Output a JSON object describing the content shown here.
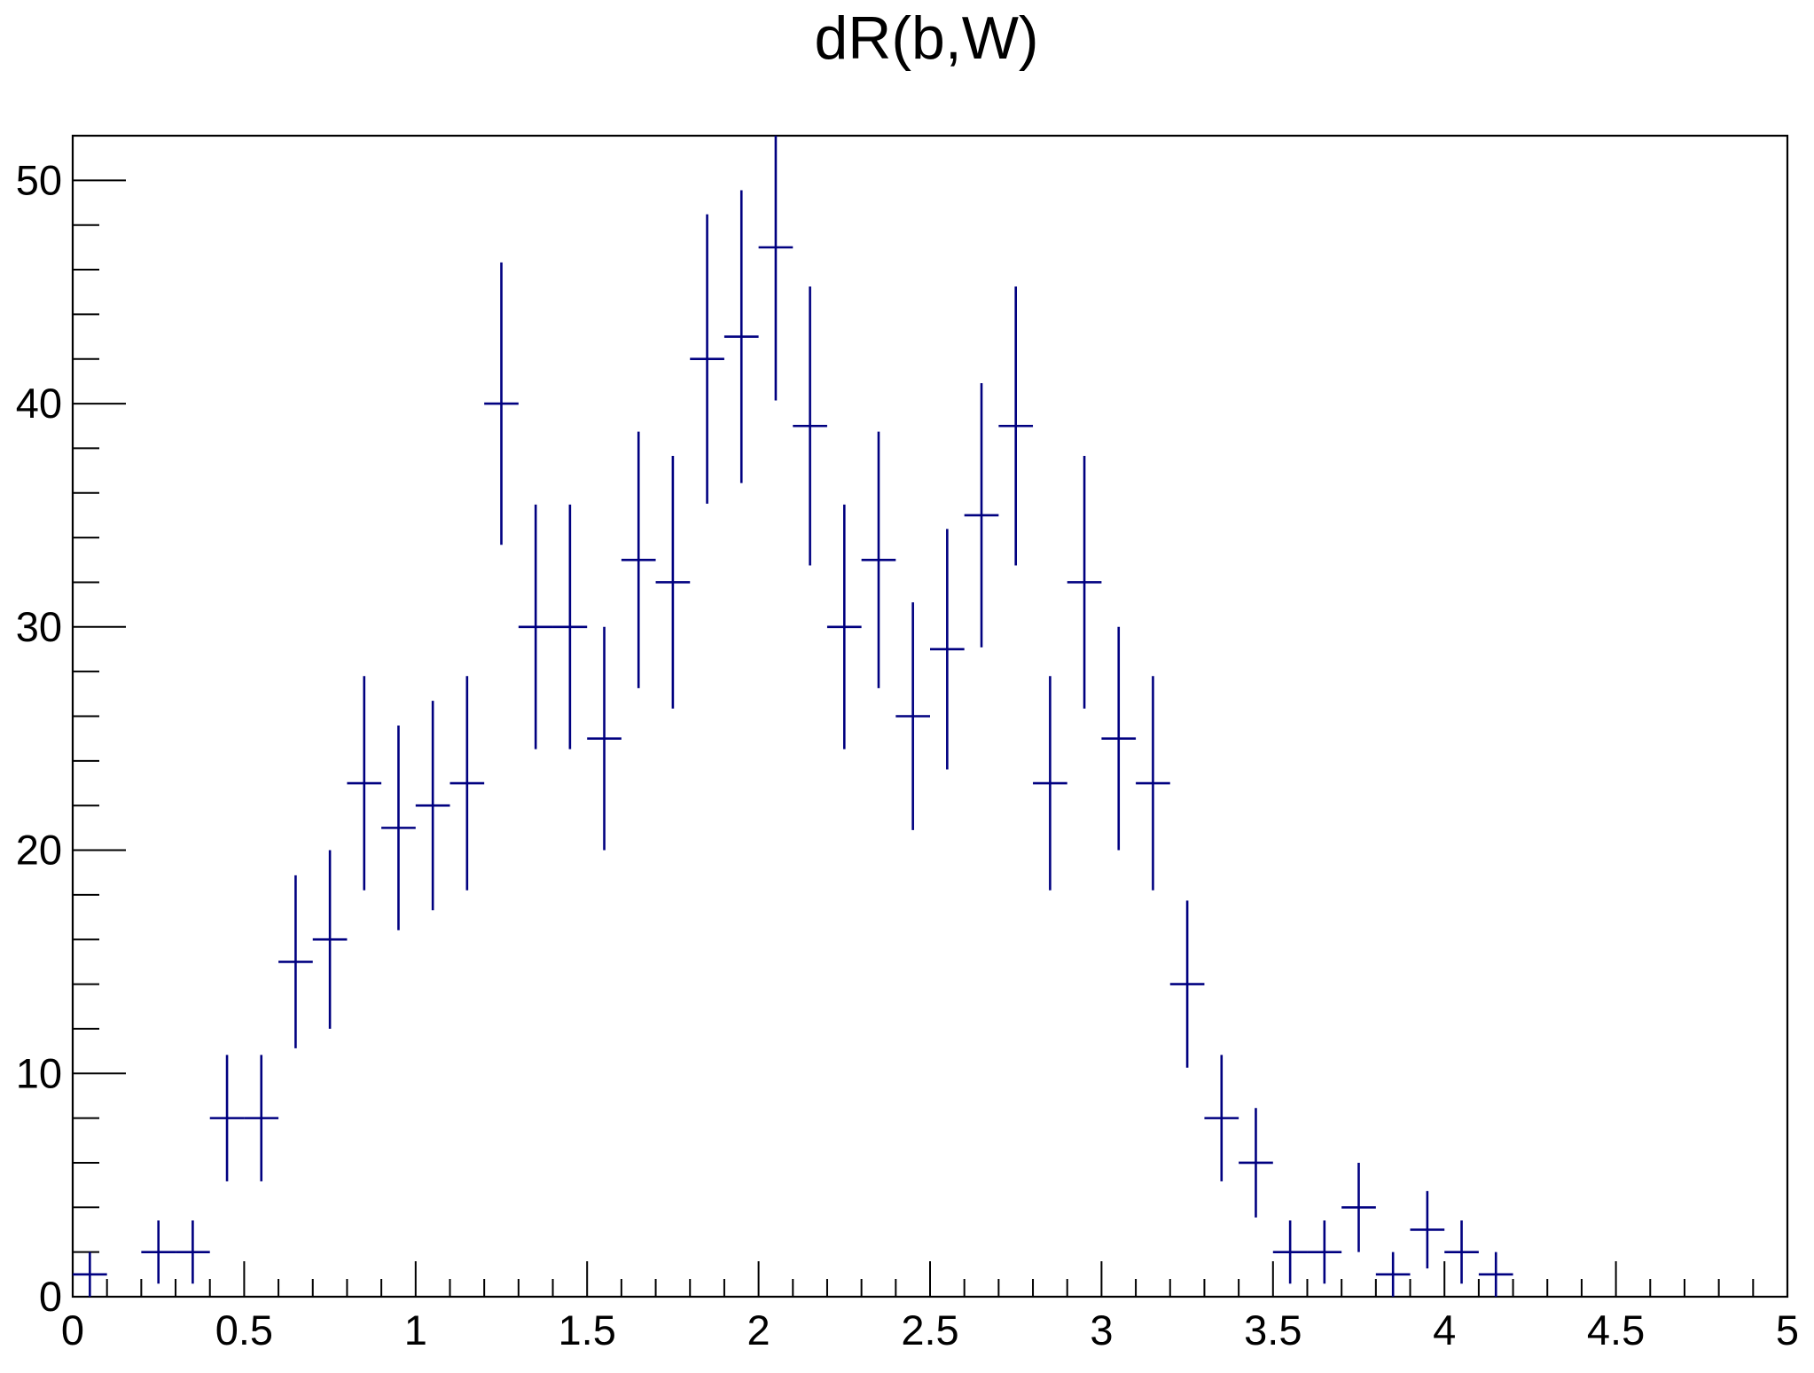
{
  "chart_data": {
    "type": "scatter",
    "title": "dR(b,W)",
    "xlabel": "",
    "ylabel": "",
    "xlim": [
      0,
      5
    ],
    "ylim": [
      0,
      52
    ],
    "grid": false,
    "bin_width": 0.1,
    "x_ticks": [
      "0",
      "0.5",
      "1",
      "1.5",
      "2",
      "2.5",
      "3",
      "3.5",
      "4",
      "4.5",
      "5"
    ],
    "y_ticks": [
      "0",
      "10",
      "20",
      "30",
      "40",
      "50"
    ],
    "series": [
      {
        "color": "#000080",
        "x": [
          0.05,
          0.15,
          0.25,
          0.35,
          0.45,
          0.55,
          0.65,
          0.75,
          0.85,
          0.95,
          1.05,
          1.15,
          1.25,
          1.35,
          1.45,
          1.55,
          1.65,
          1.75,
          1.85,
          1.95,
          2.05,
          2.15,
          2.25,
          2.35,
          2.45,
          2.55,
          2.65,
          2.75,
          2.85,
          2.95,
          3.05,
          3.15,
          3.25,
          3.35,
          3.45,
          3.55,
          3.65,
          3.75,
          3.85,
          3.95,
          4.05,
          4.15
        ],
        "y": [
          1,
          0,
          2,
          2,
          8,
          8,
          15,
          16,
          23,
          21,
          22,
          23,
          40,
          30,
          30,
          25,
          33,
          32,
          42,
          43,
          47,
          39,
          30,
          33,
          26,
          29,
          35,
          39,
          23,
          32,
          25,
          23,
          14,
          8,
          6,
          2,
          2,
          4,
          1,
          3,
          2,
          1
        ]
      }
    ]
  }
}
